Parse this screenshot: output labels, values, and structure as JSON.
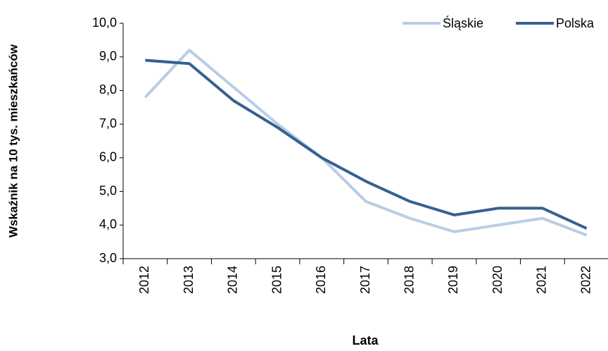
{
  "chart_data": {
    "type": "line",
    "y_label": "Wskaźnik na 10 tys. mieszkańców",
    "x_label": "Lata",
    "categories": [
      "2012",
      "2013",
      "2014",
      "2015",
      "2016",
      "2017",
      "2018",
      "2019",
      "2020",
      "2021",
      "2022"
    ],
    "series": [
      {
        "name": "Śląskie",
        "color": "#b9cde5",
        "values": [
          7.8,
          9.2,
          8.1,
          7.0,
          6.0,
          4.7,
          4.2,
          3.8,
          4.0,
          4.2,
          3.7
        ]
      },
      {
        "name": "Polska",
        "color": "#376092",
        "values": [
          8.9,
          8.8,
          7.7,
          6.9,
          6.0,
          5.3,
          4.7,
          4.3,
          4.5,
          4.5,
          3.9
        ]
      }
    ],
    "ylim": [
      3,
      10
    ],
    "yticks": [
      {
        "value": 3,
        "label": "3,0"
      },
      {
        "value": 4,
        "label": "4,0"
      },
      {
        "value": 5,
        "label": "5,0"
      },
      {
        "value": 6,
        "label": "6,0"
      },
      {
        "value": 7,
        "label": "7,0"
      },
      {
        "value": 8,
        "label": "8,0"
      },
      {
        "value": 9,
        "label": "9,0"
      },
      {
        "value": 10,
        "label": "10,0"
      }
    ],
    "legend": "top-right"
  }
}
